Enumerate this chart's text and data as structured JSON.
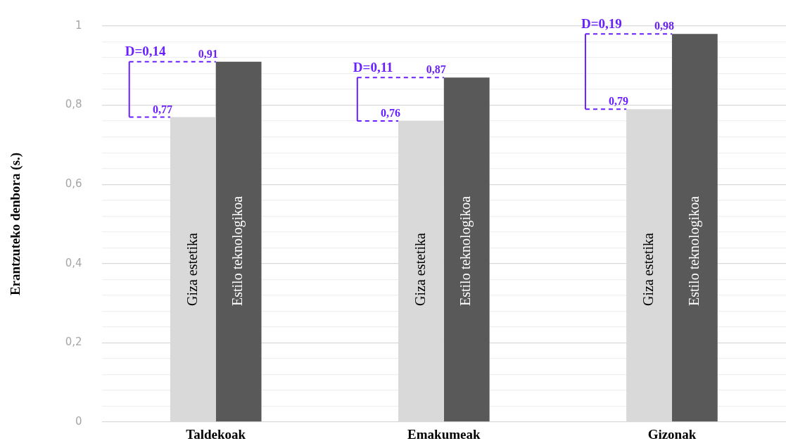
{
  "chart_data": {
    "type": "bar",
    "ylabel": "Erantzuteko denbora (s.)",
    "categories": [
      "Taldekoak",
      "Emakumeak",
      "Gizonak"
    ],
    "series": [
      {
        "name": "Giza estetika",
        "color": "#d9d9d9",
        "values": [
          0.77,
          0.76,
          0.79
        ],
        "value_labels": [
          "0,77",
          "0,76",
          "0,79"
        ]
      },
      {
        "name": "Estilo teknologikoa",
        "color": "#595959",
        "values": [
          0.91,
          0.87,
          0.98
        ],
        "value_labels": [
          "0,91",
          "0,87",
          "0,98"
        ]
      }
    ],
    "ylim": [
      0,
      1
    ],
    "yticks": [
      {
        "value": 0,
        "label": "0"
      },
      {
        "value": 0.04,
        "label": null
      },
      {
        "value": 0.08,
        "label": null
      },
      {
        "value": 0.12,
        "label": null
      },
      {
        "value": 0.16,
        "label": null
      },
      {
        "value": 0.2,
        "label": "0,2"
      },
      {
        "value": 0.24,
        "label": null
      },
      {
        "value": 0.28,
        "label": null
      },
      {
        "value": 0.32,
        "label": null
      },
      {
        "value": 0.36,
        "label": null
      },
      {
        "value": 0.4,
        "label": "0,4"
      },
      {
        "value": 0.44,
        "label": null
      },
      {
        "value": 0.48,
        "label": null
      },
      {
        "value": 0.52,
        "label": null
      },
      {
        "value": 0.56,
        "label": null
      },
      {
        "value": 0.6,
        "label": "0,6"
      },
      {
        "value": 0.64,
        "label": null
      },
      {
        "value": 0.68,
        "label": null
      },
      {
        "value": 0.72,
        "label": null
      },
      {
        "value": 0.76,
        "label": null
      },
      {
        "value": 0.8,
        "label": "0,8"
      },
      {
        "value": 0.84,
        "label": null
      },
      {
        "value": 0.88,
        "label": null
      },
      {
        "value": 0.92,
        "label": null
      },
      {
        "value": 0.96,
        "label": null
      },
      {
        "value": 1,
        "label": "1"
      }
    ],
    "annotations": [
      {
        "text": "D=0,14",
        "x": "Taldekoak",
        "y": 0.91
      },
      {
        "text": "D=0,11",
        "x": "Emakumeak",
        "y": 0.87
      },
      {
        "text": "D=0,19",
        "x": "Gizonak",
        "y": 0.98
      }
    ],
    "grid": "y",
    "legend": false
  }
}
